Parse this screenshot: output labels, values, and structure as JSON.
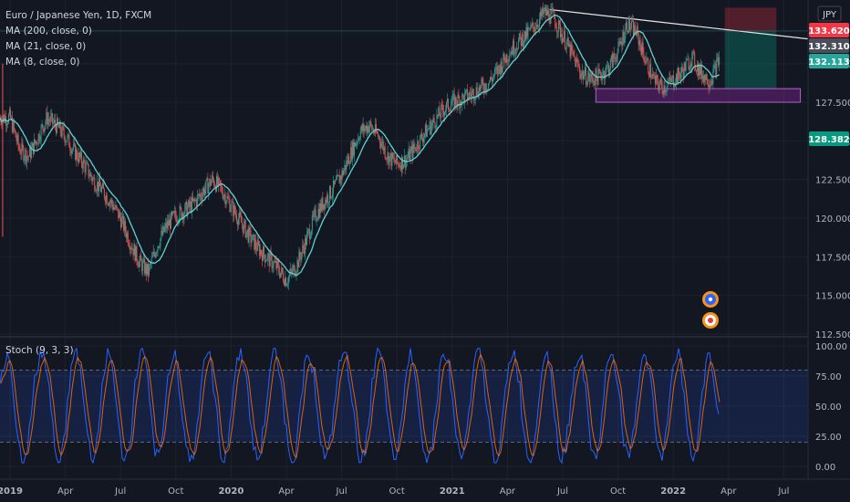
{
  "chart_data": {
    "type": "line",
    "symbol": "Euro / Japanese Yen, 1D, FXCM",
    "currency": "JPY",
    "indicators": [
      "MA (200, close, 0)",
      "MA (21, close, 0)",
      "MA (8, close, 0)"
    ],
    "price_axis": {
      "ticks": [
        "112.500",
        "115.000",
        "117.500",
        "120.000",
        "122.500",
        "125.000",
        "127.500",
        "130.000"
      ],
      "ylim": [
        112.5,
        134.0
      ]
    },
    "price_tags": [
      {
        "label": "133.620",
        "value": 133.62,
        "color": "#f23645"
      },
      {
        "label": "132.310",
        "value": 132.31,
        "color": "#4a4e59"
      },
      {
        "label": "132.113",
        "value": 132.113,
        "color": "#26a69a"
      },
      {
        "label": "128.382",
        "value": 128.382,
        "color": "#089981"
      }
    ],
    "time_axis": {
      "labels": [
        "2019",
        "Apr",
        "Jul",
        "Oct",
        "2020",
        "Apr",
        "Jul",
        "Oct",
        "2021",
        "Apr",
        "Jul",
        "Oct",
        "2022",
        "Apr",
        "Jul"
      ],
      "bold": [
        "2019",
        "2020",
        "2021",
        "2022"
      ]
    },
    "series": [
      {
        "kind": "price",
        "color": "#26a69a",
        "x": [
          0,
          0.5,
          1,
          1.5,
          2,
          2.5,
          3,
          3.5,
          4,
          4.5,
          5,
          5.5,
          6,
          6.5,
          7,
          7.5,
          8,
          8.5,
          9,
          9.5,
          10,
          10.5,
          11,
          11.5,
          12,
          12.5,
          13,
          13.5,
          14,
          14.5,
          15,
          15.5,
          16,
          16.5,
          17,
          17.5,
          18,
          18.5,
          19,
          19.5,
          20,
          20.5,
          21,
          21.5,
          22,
          22.5,
          23,
          23.5,
          24,
          24.5,
          25,
          25.5,
          26,
          26.5,
          27,
          27.5,
          28,
          28.5,
          29,
          29.5,
          30,
          30.5,
          31,
          31.5,
          32,
          32.5,
          33,
          33.5,
          34,
          34.5,
          35,
          35.5,
          36,
          36.5,
          37,
          37.5,
          38,
          38.5
        ],
        "values": [
          126.5,
          124.5,
          124.0,
          125.2,
          126.5,
          126.0,
          125.3,
          124.3,
          123.5,
          122.5,
          121.8,
          121.0,
          120.0,
          118.5,
          117.2,
          116.5,
          118.3,
          119.5,
          120.2,
          120.5,
          121.0,
          121.8,
          122.5,
          121.8,
          120.8,
          119.8,
          118.8,
          118.0,
          117.4,
          116.8,
          116.0,
          116.8,
          118.3,
          120.0,
          121.0,
          121.8,
          122.8,
          124.2,
          125.6,
          126.0,
          125.3,
          124.0,
          123.5,
          123.8,
          124.6,
          125.5,
          126.2,
          127.0,
          127.5,
          127.7,
          128.0,
          128.4,
          128.8,
          129.6,
          130.6,
          131.3,
          131.8,
          132.5,
          133.3,
          133.0,
          131.8,
          130.6,
          129.4,
          129.0,
          129.2,
          129.8,
          130.8,
          132.6,
          132.0,
          130.2,
          128.8,
          128.5,
          128.9,
          129.5,
          130.4,
          129.4,
          128.9,
          130.3
        ]
      },
      {
        "kind": "oscillator",
        "name": "Stoch (9, 3, 3)",
        "ticks": [
          "100.00",
          "75.00",
          "50.00",
          "25.00",
          "0.00"
        ],
        "ylim": [
          0,
          100
        ],
        "bands": [
          20,
          80
        ],
        "colors": {
          "k": "#2962ff",
          "d": "#ff6d00"
        }
      }
    ]
  }
}
